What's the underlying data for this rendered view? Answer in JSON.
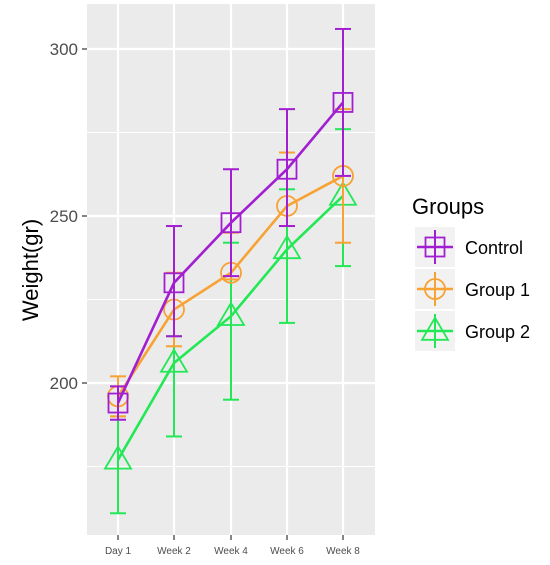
{
  "chart_data": {
    "type": "line",
    "title": "",
    "xlabel": "",
    "ylabel": "Weight(gr)",
    "categories": [
      "Day 1",
      "Week 2",
      "Week 4",
      "Week 6",
      "Week 8"
    ],
    "ylim": [
      160,
      312
    ],
    "y_ticks": [
      200,
      250,
      300
    ],
    "grid": true,
    "legend": {
      "title": "Groups",
      "position": "right"
    },
    "series": [
      {
        "name": "Control",
        "color": "#a21fd1",
        "marker": "square",
        "values": [
          194,
          230,
          248,
          264,
          284
        ],
        "error_low": [
          189,
          214,
          232,
          247,
          262
        ],
        "error_high": [
          199,
          247,
          264,
          282,
          306
        ]
      },
      {
        "name": "Group 1",
        "color": "#f7a233",
        "marker": "circle",
        "values": [
          196,
          222,
          233,
          253,
          262
        ],
        "error_low": [
          190,
          211,
          231,
          247,
          242
        ],
        "error_high": [
          202,
          233,
          245,
          269,
          282
        ]
      },
      {
        "name": "Group 2",
        "color": "#22e855",
        "marker": "triangle",
        "values": [
          177,
          206,
          220,
          240,
          256
        ],
        "error_low": [
          161,
          184,
          195,
          218,
          235
        ],
        "error_high": [
          190,
          214,
          242,
          258,
          276
        ]
      }
    ]
  }
}
